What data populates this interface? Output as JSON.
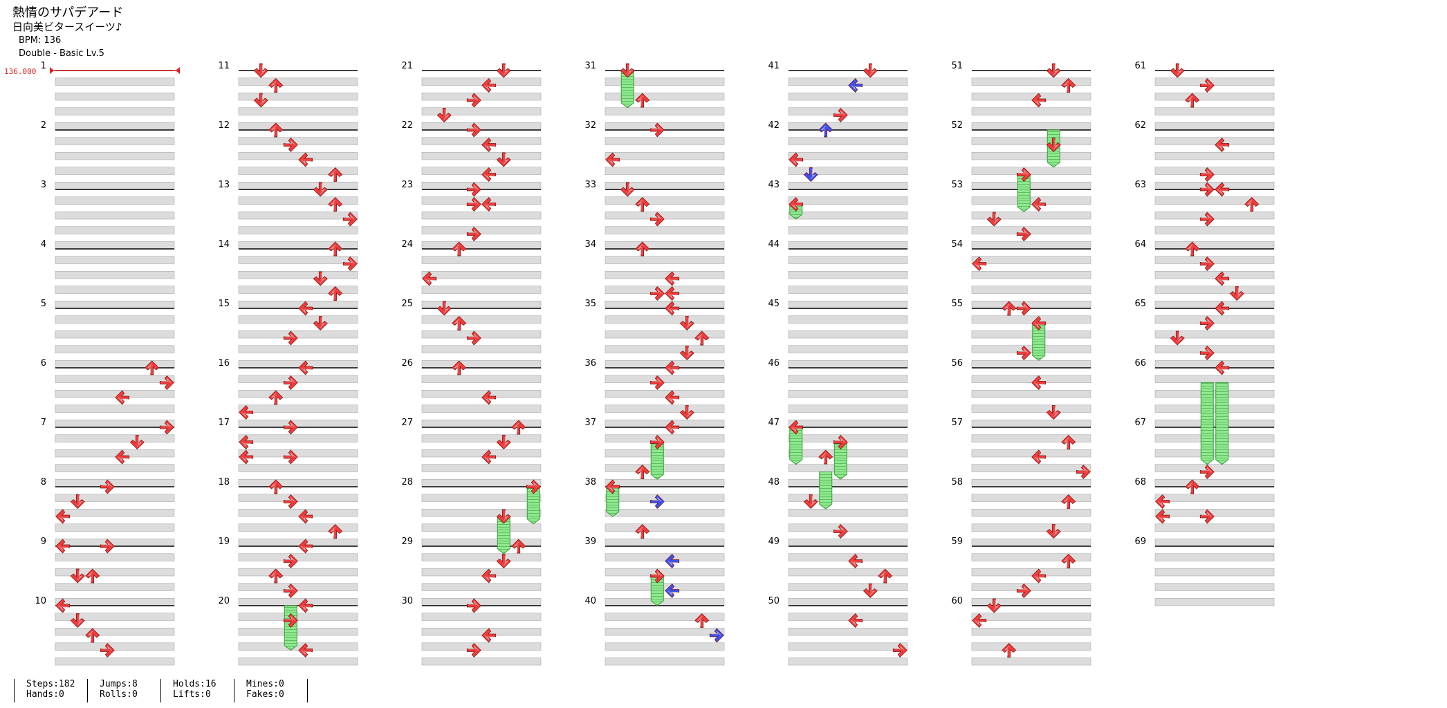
{
  "song": {
    "title": "熱情のサパデアード",
    "artist": "日向美ビタースイーツ♪",
    "bpm_line": "BPM: 136",
    "difficulty_line": "Double - Basic Lv.5"
  },
  "bpm_marker": "136.000",
  "colors": {
    "note": "#f03c3c",
    "note_alt": "#3c50f0",
    "hold": "#7fe07f",
    "beat_band": "#dcdcdc"
  },
  "chart_data": {
    "type": "table",
    "measure_count": 69,
    "columns": 8,
    "rows_per_measure": 4,
    "measure_labels": [
      "1",
      "2",
      "3",
      "4",
      "5",
      "6",
      "7",
      "8",
      "9",
      "10",
      "11",
      "12",
      "13",
      "14",
      "15",
      "16",
      "17",
      "18",
      "19",
      "20",
      "21",
      "22",
      "23",
      "24",
      "25",
      "26",
      "27",
      "28",
      "29",
      "30",
      "31",
      "32",
      "33",
      "34",
      "35",
      "36",
      "37",
      "38",
      "39",
      "40",
      "41",
      "42",
      "43",
      "44",
      "45",
      "46",
      "47",
      "48",
      "49",
      "50",
      "51",
      "52",
      "53",
      "54",
      "55",
      "56",
      "57",
      "58",
      "59",
      "60",
      "61",
      "62",
      "63",
      "64",
      "65",
      "66",
      "67",
      "68",
      "69"
    ],
    "notes": [
      {
        "m": 6,
        "r": 0,
        "c": 6
      },
      {
        "m": 6,
        "r": 1,
        "c": 7
      },
      {
        "m": 6,
        "r": 2,
        "c": 4
      },
      {
        "m": 7,
        "r": 0,
        "c": 7
      },
      {
        "m": 7,
        "r": 1,
        "c": 5
      },
      {
        "m": 7,
        "r": 2,
        "c": 4
      },
      {
        "m": 8,
        "r": 0,
        "c": 3
      },
      {
        "m": 8,
        "r": 1,
        "c": 1
      },
      {
        "m": 8,
        "r": 2,
        "c": 0
      },
      {
        "m": 9,
        "r": 0,
        "c": 0
      },
      {
        "m": 9,
        "r": 0,
        "c": 3
      },
      {
        "m": 9,
        "r": 2,
        "c": 1
      },
      {
        "m": 9,
        "r": 2,
        "c": 2
      },
      {
        "m": 10,
        "r": 0,
        "c": 0
      },
      {
        "m": 10,
        "r": 1,
        "c": 1
      },
      {
        "m": 10,
        "r": 2,
        "c": 2
      },
      {
        "m": 10,
        "r": 3,
        "c": 3
      },
      {
        "m": 11,
        "r": 0,
        "c": 1
      },
      {
        "m": 11,
        "r": 1,
        "c": 2
      },
      {
        "m": 11,
        "r": 2,
        "c": 1
      },
      {
        "m": 12,
        "r": 0,
        "c": 2
      },
      {
        "m": 12,
        "r": 1,
        "c": 3
      },
      {
        "m": 12,
        "r": 2,
        "c": 4
      },
      {
        "m": 12,
        "r": 3,
        "c": 6
      },
      {
        "m": 13,
        "r": 0,
        "c": 5
      },
      {
        "m": 13,
        "r": 1,
        "c": 6
      },
      {
        "m": 13,
        "r": 2,
        "c": 7
      },
      {
        "m": 14,
        "r": 0,
        "c": 6
      },
      {
        "m": 14,
        "r": 1,
        "c": 7
      },
      {
        "m": 14,
        "r": 2,
        "c": 5
      },
      {
        "m": 14,
        "r": 3,
        "c": 6
      },
      {
        "m": 15,
        "r": 0,
        "c": 4
      },
      {
        "m": 15,
        "r": 1,
        "c": 5
      },
      {
        "m": 15,
        "r": 2,
        "c": 3
      },
      {
        "m": 16,
        "r": 0,
        "c": 4
      },
      {
        "m": 16,
        "r": 1,
        "c": 3
      },
      {
        "m": 16,
        "r": 2,
        "c": 2
      },
      {
        "m": 16,
        "r": 3,
        "c": 0
      },
      {
        "m": 17,
        "r": 0,
        "c": 3
      },
      {
        "m": 17,
        "r": 1,
        "c": 0
      },
      {
        "m": 17,
        "r": 2,
        "c": 0
      },
      {
        "m": 17,
        "r": 2,
        "c": 3
      },
      {
        "m": 18,
        "r": 0,
        "c": 2
      },
      {
        "m": 18,
        "r": 1,
        "c": 3
      },
      {
        "m": 18,
        "r": 2,
        "c": 4
      },
      {
        "m": 18,
        "r": 3,
        "c": 6
      },
      {
        "m": 19,
        "r": 0,
        "c": 4
      },
      {
        "m": 19,
        "r": 1,
        "c": 3
      },
      {
        "m": 19,
        "r": 2,
        "c": 2
      },
      {
        "m": 19,
        "r": 3,
        "c": 3
      },
      {
        "m": 20,
        "r": 0,
        "c": 4
      },
      {
        "m": 20,
        "r": 1,
        "c": 3
      },
      {
        "m": 20,
        "r": 3,
        "c": 4
      },
      {
        "m": 21,
        "r": 0,
        "c": 5
      },
      {
        "m": 21,
        "r": 1,
        "c": 4
      },
      {
        "m": 21,
        "r": 2,
        "c": 3
      },
      {
        "m": 21,
        "r": 3,
        "c": 1
      },
      {
        "m": 22,
        "r": 0,
        "c": 3
      },
      {
        "m": 22,
        "r": 1,
        "c": 4
      },
      {
        "m": 22,
        "r": 2,
        "c": 5
      },
      {
        "m": 22,
        "r": 3,
        "c": 4
      },
      {
        "m": 23,
        "r": 0,
        "c": 3
      },
      {
        "m": 23,
        "r": 1,
        "c": 3
      },
      {
        "m": 23,
        "r": 1,
        "c": 4
      },
      {
        "m": 24,
        "r": 0,
        "c": 2
      },
      {
        "m": 23,
        "r": 3,
        "c": 3
      },
      {
        "m": 24,
        "r": 2,
        "c": 0
      },
      {
        "m": 25,
        "r": 0,
        "c": 1
      },
      {
        "m": 25,
        "r": 1,
        "c": 2
      },
      {
        "m": 25,
        "r": 2,
        "c": 3
      },
      {
        "m": 26,
        "r": 0,
        "c": 2
      },
      {
        "m": 26,
        "r": 2,
        "c": 4
      },
      {
        "m": 27,
        "r": 0,
        "c": 6
      },
      {
        "m": 27,
        "r": 1,
        "c": 5
      },
      {
        "m": 27,
        "r": 2,
        "c": 4
      },
      {
        "m": 28,
        "r": 0,
        "c": 7
      },
      {
        "m": 28,
        "r": 2,
        "c": 5
      },
      {
        "m": 29,
        "r": 0,
        "c": 6
      },
      {
        "m": 29,
        "r": 1,
        "c": 5
      },
      {
        "m": 29,
        "r": 2,
        "c": 4
      },
      {
        "m": 30,
        "r": 0,
        "c": 3
      },
      {
        "m": 30,
        "r": 2,
        "c": 4
      },
      {
        "m": 30,
        "r": 3,
        "c": 3
      },
      {
        "m": 31,
        "r": 0,
        "c": 1
      },
      {
        "m": 31,
        "r": 2,
        "c": 2
      },
      {
        "m": 32,
        "r": 0,
        "c": 3
      },
      {
        "m": 32,
        "r": 2,
        "c": 0
      },
      {
        "m": 33,
        "r": 0,
        "c": 1
      },
      {
        "m": 33,
        "r": 1,
        "c": 2
      },
      {
        "m": 33,
        "r": 2,
        "c": 3
      },
      {
        "m": 34,
        "r": 0,
        "c": 2
      },
      {
        "m": 34,
        "r": 2,
        "c": 4
      },
      {
        "m": 34,
        "r": 3,
        "c": 3
      },
      {
        "m": 34,
        "r": 3,
        "c": 4
      },
      {
        "m": 35,
        "r": 0,
        "c": 4
      },
      {
        "m": 35,
        "r": 1,
        "c": 5
      },
      {
        "m": 35,
        "r": 2,
        "c": 6
      },
      {
        "m": 35,
        "r": 3,
        "c": 5
      },
      {
        "m": 36,
        "r": 0,
        "c": 4
      },
      {
        "m": 36,
        "r": 1,
        "c": 3
      },
      {
        "m": 36,
        "r": 2,
        "c": 4
      },
      {
        "m": 36,
        "r": 3,
        "c": 5
      },
      {
        "m": 37,
        "r": 0,
        "c": 4
      },
      {
        "m": 37,
        "r": 1,
        "c": 3
      },
      {
        "m": 37,
        "r": 3,
        "c": 2
      },
      {
        "m": 38,
        "r": 0,
        "c": 0
      },
      {
        "m": 38,
        "r": 1,
        "c": 3,
        "alt": true
      },
      {
        "m": 38,
        "r": 3,
        "c": 2
      },
      {
        "m": 39,
        "r": 1,
        "c": 4,
        "alt": true
      },
      {
        "m": 39,
        "r": 2,
        "c": 3
      },
      {
        "m": 39,
        "r": 3,
        "c": 4,
        "alt": true
      },
      {
        "m": 40,
        "r": 1,
        "c": 6
      },
      {
        "m": 40,
        "r": 2,
        "c": 7,
        "alt": true
      },
      {
        "m": 41,
        "r": 0,
        "c": 5
      },
      {
        "m": 41,
        "r": 1,
        "c": 4,
        "alt": true
      },
      {
        "m": 41,
        "r": 3,
        "c": 3
      },
      {
        "m": 42,
        "r": 0,
        "c": 2,
        "alt": true
      },
      {
        "m": 42,
        "r": 2,
        "c": 0
      },
      {
        "m": 42,
        "r": 3,
        "c": 1,
        "alt": true
      },
      {
        "m": 43,
        "r": 1,
        "c": 0
      },
      {
        "m": 47,
        "r": 0,
        "c": 0
      },
      {
        "m": 47,
        "r": 1,
        "c": 3
      },
      {
        "m": 47,
        "r": 2,
        "c": 2
      },
      {
        "m": 48,
        "r": 1,
        "c": 1
      },
      {
        "m": 48,
        "r": 3,
        "c": 3
      },
      {
        "m": 49,
        "r": 1,
        "c": 4
      },
      {
        "m": 49,
        "r": 2,
        "c": 6
      },
      {
        "m": 49,
        "r": 3,
        "c": 5
      },
      {
        "m": 50,
        "r": 1,
        "c": 4
      },
      {
        "m": 50,
        "r": 3,
        "c": 7
      },
      {
        "m": 51,
        "r": 0,
        "c": 5
      },
      {
        "m": 51,
        "r": 1,
        "c": 6
      },
      {
        "m": 51,
        "r": 2,
        "c": 4
      },
      {
        "m": 52,
        "r": 1,
        "c": 5
      },
      {
        "m": 52,
        "r": 3,
        "c": 3
      },
      {
        "m": 53,
        "r": 1,
        "c": 4
      },
      {
        "m": 53,
        "r": 2,
        "c": 1
      },
      {
        "m": 53,
        "r": 3,
        "c": 3
      },
      {
        "m": 54,
        "r": 1,
        "c": 0
      },
      {
        "m": 55,
        "r": 0,
        "c": 2
      },
      {
        "m": 55,
        "r": 0,
        "c": 3
      },
      {
        "m": 55,
        "r": 1,
        "c": 4
      },
      {
        "m": 55,
        "r": 3,
        "c": 3
      },
      {
        "m": 56,
        "r": 1,
        "c": 4
      },
      {
        "m": 56,
        "r": 3,
        "c": 5
      },
      {
        "m": 57,
        "r": 1,
        "c": 6
      },
      {
        "m": 57,
        "r": 2,
        "c": 4
      },
      {
        "m": 57,
        "r": 3,
        "c": 7
      },
      {
        "m": 58,
        "r": 1,
        "c": 6
      },
      {
        "m": 58,
        "r": 3,
        "c": 5
      },
      {
        "m": 59,
        "r": 1,
        "c": 6
      },
      {
        "m": 59,
        "r": 2,
        "c": 4
      },
      {
        "m": 59,
        "r": 3,
        "c": 3
      },
      {
        "m": 60,
        "r": 0,
        "c": 1
      },
      {
        "m": 60,
        "r": 1,
        "c": 0
      },
      {
        "m": 60,
        "r": 3,
        "c": 2
      },
      {
        "m": 61,
        "r": 0,
        "c": 1
      },
      {
        "m": 61,
        "r": 1,
        "c": 3
      },
      {
        "m": 61,
        "r": 2,
        "c": 2
      },
      {
        "m": 62,
        "r": 1,
        "c": 4
      },
      {
        "m": 62,
        "r": 3,
        "c": 3
      },
      {
        "m": 63,
        "r": 0,
        "c": 3
      },
      {
        "m": 63,
        "r": 0,
        "c": 4
      },
      {
        "m": 63,
        "r": 1,
        "c": 6
      },
      {
        "m": 63,
        "r": 2,
        "c": 3
      },
      {
        "m": 64,
        "r": 0,
        "c": 2
      },
      {
        "m": 64,
        "r": 1,
        "c": 3
      },
      {
        "m": 64,
        "r": 2,
        "c": 4
      },
      {
        "m": 64,
        "r": 3,
        "c": 5
      },
      {
        "m": 65,
        "r": 0,
        "c": 4
      },
      {
        "m": 65,
        "r": 1,
        "c": 3
      },
      {
        "m": 65,
        "r": 2,
        "c": 1
      },
      {
        "m": 65,
        "r": 3,
        "c": 3
      },
      {
        "m": 66,
        "r": 0,
        "c": 4
      },
      {
        "m": 67,
        "r": 3,
        "c": 3
      },
      {
        "m": 68,
        "r": 0,
        "c": 2
      },
      {
        "m": 68,
        "r": 1,
        "c": 0
      },
      {
        "m": 68,
        "r": 2,
        "c": 0
      },
      {
        "m": 68,
        "r": 2,
        "c": 3
      }
    ],
    "holds": [
      {
        "m": 20,
        "r": 0,
        "len": 3,
        "c": 3
      },
      {
        "m": 28,
        "r": 0,
        "len": 2.5,
        "c": 7
      },
      {
        "m": 28,
        "r": 2,
        "len": 2.5,
        "c": 5
      },
      {
        "m": 31,
        "r": 0,
        "len": 2.5,
        "c": 1
      },
      {
        "m": 37,
        "r": 1,
        "len": 2.5,
        "c": 3
      },
      {
        "m": 38,
        "r": 0,
        "len": 2,
        "c": 0
      },
      {
        "m": 39,
        "r": 2,
        "len": 2,
        "c": 3
      },
      {
        "m": 43,
        "r": 1,
        "len": 1,
        "c": 0
      },
      {
        "m": 47,
        "r": 0,
        "len": 2.5,
        "c": 0
      },
      {
        "m": 47,
        "r": 1,
        "len": 2.5,
        "c": 3
      },
      {
        "m": 47,
        "r": 3,
        "len": 2.5,
        "c": 2
      },
      {
        "m": 52,
        "r": 0,
        "len": 2.5,
        "c": 5
      },
      {
        "m": 52,
        "r": 3,
        "len": 2.5,
        "c": 3
      },
      {
        "m": 55,
        "r": 1,
        "len": 2.5,
        "c": 4
      },
      {
        "m": 66,
        "r": 1,
        "len": 5.5,
        "c": 3
      },
      {
        "m": 66,
        "r": 1,
        "len": 5.5,
        "c": 4
      }
    ]
  },
  "stats": {
    "steps": "Steps:182",
    "hands": "Hands:0",
    "jumps": "Jumps:8",
    "rolls": "Rolls:0",
    "holds": "Holds:16",
    "lifts": "Lifts:0",
    "mines": "Mines:0",
    "fakes": "Fakes:0"
  }
}
